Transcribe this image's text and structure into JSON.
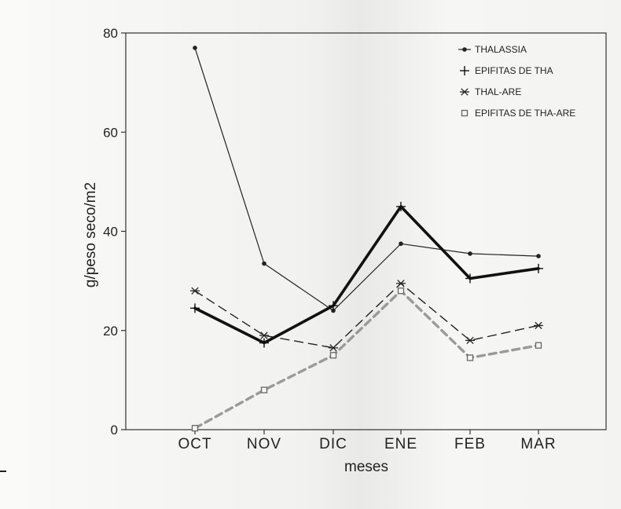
{
  "chart_data": {
    "type": "line",
    "title": "",
    "xlabel": "meses",
    "ylabel": "g/peso seco/m2",
    "categories": [
      "OCT",
      "NOV",
      "DIC",
      "ENE",
      "FEB",
      "MAR"
    ],
    "ylim": [
      0,
      80
    ],
    "yticks": [
      0,
      20,
      40,
      60,
      80
    ],
    "grid": false,
    "legend_position": "top-right",
    "series": [
      {
        "name": "THALASSIA",
        "values": [
          77,
          33.5,
          24,
          37.5,
          35.5,
          35
        ],
        "color": "#222222",
        "style": "thin-solid",
        "marker": "dot"
      },
      {
        "name": "EPIFITAS DE THA",
        "values": [
          24.5,
          17.5,
          25,
          45,
          30.5,
          32.5
        ],
        "color": "#111111",
        "style": "thick-solid",
        "marker": "plus"
      },
      {
        "name": "THAL-ARE",
        "values": [
          28,
          19,
          16.5,
          29.5,
          18,
          21
        ],
        "color": "#222222",
        "style": "dashed",
        "marker": "asterisk"
      },
      {
        "name": "EPIFITAS DE THA-ARE",
        "values": [
          0.3,
          8,
          15,
          28,
          14.5,
          17
        ],
        "color": "#9a9a9a",
        "style": "thick-dashed-grey",
        "marker": "square"
      }
    ]
  }
}
